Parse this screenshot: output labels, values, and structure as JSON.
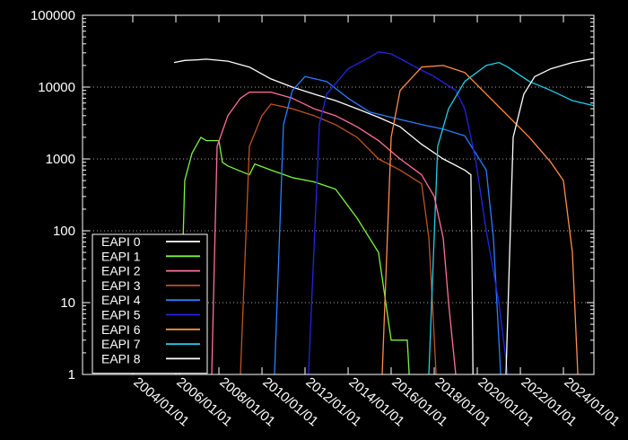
{
  "chart_data": {
    "type": "line",
    "x_axis": {
      "kind": "date",
      "range": [
        "2001/09/01",
        "2025/06/01"
      ],
      "ticks": [
        "2004/01/01",
        "2006/01/01",
        "2008/01/01",
        "2010/01/01",
        "2012/01/01",
        "2014/01/01",
        "2016/01/01",
        "2018/01/01",
        "2020/01/01",
        "2022/01/01",
        "2024/01/01"
      ]
    },
    "y_axis": {
      "scale": "log",
      "range": [
        1,
        100000
      ],
      "ticks": [
        {
          "value": 1,
          "label": "1"
        },
        {
          "value": 10,
          "label": "10"
        },
        {
          "value": 100,
          "label": "100"
        },
        {
          "value": 1000,
          "label": "1000"
        },
        {
          "value": 10000,
          "label": "10000"
        },
        {
          "value": 100000,
          "label": "100000"
        }
      ]
    },
    "grid": "dashed horizontal at y ticks",
    "legend_position": "bottom-left",
    "series": [
      {
        "name": "EAPI 0",
        "color": "#ffffff",
        "points": [
          [
            "2005/12/01",
            22000
          ],
          [
            "2006/06/01",
            23500
          ],
          [
            "2007/01/01",
            24000
          ],
          [
            "2007/06/01",
            24500
          ],
          [
            "2008/06/01",
            23000
          ],
          [
            "2009/06/01",
            19000
          ],
          [
            "2010/06/01",
            13000
          ],
          [
            "2011/06/01",
            10000
          ],
          [
            "2012/06/01",
            8000
          ],
          [
            "2013/06/01",
            6500
          ],
          [
            "2014/06/01",
            5000
          ],
          [
            "2015/06/01",
            3800
          ],
          [
            "2016/06/01",
            2800
          ],
          [
            "2017/06/01",
            1600
          ],
          [
            "2018/06/01",
            1000
          ],
          [
            "2019/06/01",
            700
          ],
          [
            "2019/09/15",
            600
          ],
          [
            "2019/10/01",
            50
          ],
          [
            "2019/10/20",
            1
          ]
        ]
      },
      {
        "name": "EAPI 1",
        "color": "#7cf43c",
        "points": [
          [
            "2006/03/01",
            1
          ],
          [
            "2006/06/01",
            500
          ],
          [
            "2006/10/01",
            1200
          ],
          [
            "2007/03/01",
            2000
          ],
          [
            "2007/06/01",
            1800
          ],
          [
            "2008/01/01",
            1800
          ],
          [
            "2008/03/01",
            900
          ],
          [
            "2008/06/01",
            800
          ],
          [
            "2009/06/01",
            600
          ],
          [
            "2009/09/01",
            850
          ],
          [
            "2010/06/01",
            700
          ],
          [
            "2011/06/01",
            550
          ],
          [
            "2012/06/01",
            480
          ],
          [
            "2013/06/01",
            380
          ],
          [
            "2014/06/01",
            150
          ],
          [
            "2015/06/01",
            50
          ],
          [
            "2015/10/01",
            10
          ],
          [
            "2016/01/01",
            3
          ],
          [
            "2016/10/01",
            3
          ],
          [
            "2016/11/01",
            1
          ]
        ]
      },
      {
        "name": "EAPI 2",
        "color": "#ff6f9b",
        "points": [
          [
            "2007/09/01",
            1
          ],
          [
            "2007/12/01",
            1500
          ],
          [
            "2008/06/01",
            4000
          ],
          [
            "2009/01/01",
            7000
          ],
          [
            "2009/06/01",
            8500
          ],
          [
            "2010/06/01",
            8500
          ],
          [
            "2011/06/01",
            7000
          ],
          [
            "2012/06/01",
            5000
          ],
          [
            "2013/06/01",
            4000
          ],
          [
            "2014/06/01",
            2800
          ],
          [
            "2015/06/01",
            1800
          ],
          [
            "2016/06/01",
            1000
          ],
          [
            "2017/06/01",
            600
          ],
          [
            "2018/01/01",
            300
          ],
          [
            "2018/06/01",
            80
          ],
          [
            "2018/09/01",
            10
          ],
          [
            "2019/01/01",
            1
          ]
        ]
      },
      {
        "name": "EAPI 3",
        "color": "#c0541f",
        "points": [
          [
            "2009/01/01",
            1
          ],
          [
            "2009/06/01",
            1500
          ],
          [
            "2010/01/01",
            4000
          ],
          [
            "2010/06/01",
            5800
          ],
          [
            "2011/06/01",
            5000
          ],
          [
            "2012/06/01",
            4000
          ],
          [
            "2013/06/01",
            3000
          ],
          [
            "2014/06/01",
            2000
          ],
          [
            "2015/06/01",
            1000
          ],
          [
            "2016/06/01",
            700
          ],
          [
            "2017/06/01",
            450
          ],
          [
            "2017/10/01",
            80
          ],
          [
            "2017/12/01",
            10
          ],
          [
            "2018/02/01",
            1
          ]
        ]
      },
      {
        "name": "EAPI 4",
        "color": "#2a7cff",
        "points": [
          [
            "2010/08/01",
            1
          ],
          [
            "2011/01/01",
            3000
          ],
          [
            "2011/06/01",
            9000
          ],
          [
            "2012/01/01",
            14000
          ],
          [
            "2013/01/01",
            12000
          ],
          [
            "2014/01/01",
            7000
          ],
          [
            "2015/01/01",
            4500
          ],
          [
            "2016/01/01",
            3800
          ],
          [
            "2017/06/01",
            3000
          ],
          [
            "2018/06/01",
            2600
          ],
          [
            "2019/06/01",
            2100
          ],
          [
            "2020/06/01",
            700
          ],
          [
            "2020/10/01",
            80
          ],
          [
            "2021/02/01",
            1
          ]
        ]
      },
      {
        "name": "EAPI 5",
        "color": "#2424e0",
        "points": [
          [
            "2012/03/01",
            1
          ],
          [
            "2012/09/01",
            3000
          ],
          [
            "2013/01/01",
            8000
          ],
          [
            "2014/01/01",
            18000
          ],
          [
            "2015/01/01",
            26000
          ],
          [
            "2015/06/01",
            31000
          ],
          [
            "2016/01/01",
            29000
          ],
          [
            "2017/01/01",
            20000
          ],
          [
            "2018/01/01",
            14000
          ],
          [
            "2019/01/01",
            9000
          ],
          [
            "2019/06/01",
            5000
          ],
          [
            "2019/12/01",
            1000
          ],
          [
            "2020/06/01",
            100
          ],
          [
            "2021/01/01",
            10
          ],
          [
            "2021/06/01",
            1
          ]
        ]
      },
      {
        "name": "EAPI 6",
        "color": "#ff8c4a",
        "points": [
          [
            "2015/08/01",
            1
          ],
          [
            "2016/01/01",
            2000
          ],
          [
            "2016/06/01",
            9000
          ],
          [
            "2017/06/01",
            19000
          ],
          [
            "2018/06/01",
            20000
          ],
          [
            "2019/06/01",
            16000
          ],
          [
            "2020/06/01",
            8000
          ],
          [
            "2021/06/01",
            4000
          ],
          [
            "2022/06/01",
            2000
          ],
          [
            "2023/06/01",
            900
          ],
          [
            "2024/01/01",
            500
          ],
          [
            "2024/06/01",
            50
          ],
          [
            "2024/09/01",
            1
          ]
        ]
      },
      {
        "name": "EAPI 7",
        "color": "#22d0e8",
        "points": [
          [
            "2017/10/01",
            1
          ],
          [
            "2018/03/01",
            1500
          ],
          [
            "2018/09/01",
            5000
          ],
          [
            "2019/06/01",
            12000
          ],
          [
            "2020/06/01",
            20000
          ],
          [
            "2021/01/01",
            22000
          ],
          [
            "2021/06/01",
            19000
          ],
          [
            "2022/06/01",
            12000
          ],
          [
            "2023/06/01",
            9000
          ],
          [
            "2024/06/01",
            6500
          ],
          [
            "2025/06/01",
            5500
          ]
        ]
      },
      {
        "name": "EAPI 8",
        "color": "#ffffff",
        "points": [
          [
            "2021/05/01",
            1
          ],
          [
            "2021/09/01",
            2000
          ],
          [
            "2022/03/01",
            8000
          ],
          [
            "2022/09/01",
            14000
          ],
          [
            "2023/06/01",
            18000
          ],
          [
            "2024/06/01",
            22000
          ],
          [
            "2025/06/01",
            25000
          ]
        ]
      }
    ]
  }
}
